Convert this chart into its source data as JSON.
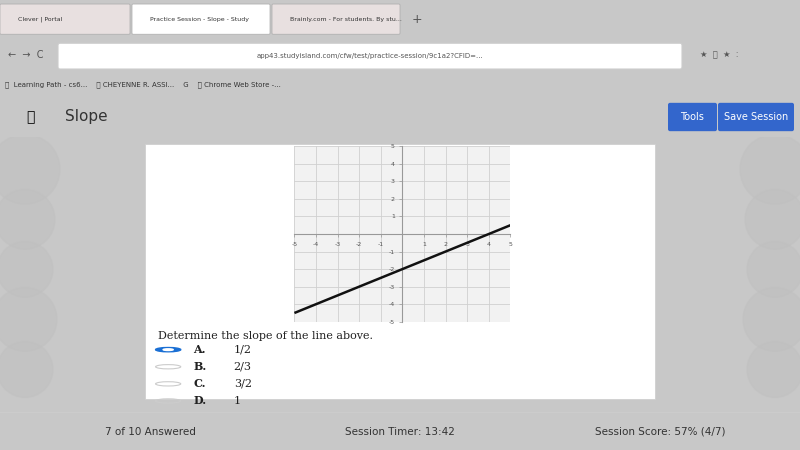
{
  "bg_outer": "#c8c8c8",
  "bg_browser_top": "#e8d0d0",
  "bg_nav": "#d44040",
  "bg_white_panel": "#ffffff",
  "bg_content": "#e0e0e0",
  "graph_bg": "#f2f2f2",
  "title": "Slope",
  "question": "Determine the slope of the line above.",
  "options": [
    {
      "label": "A.",
      "value": "1/2",
      "selected": true
    },
    {
      "label": "B.",
      "value": "2/3",
      "selected": false
    },
    {
      "label": "C.",
      "value": "3/2",
      "selected": false
    },
    {
      "label": "D.",
      "value": "1",
      "selected": false
    }
  ],
  "xlim": [
    -5,
    5
  ],
  "ylim": [
    -5,
    5
  ],
  "line_x": [
    -5,
    5
  ],
  "line_y": [
    -4.5,
    0.5
  ],
  "line_color": "#111111",
  "line_width": 1.8,
  "grid_color": "#d0d0d0",
  "axis_color": "#999999",
  "tick_color": "#555555",
  "selected_color": "#1a6fd4",
  "unselected_color": "#aaaaaa",
  "header_bg": "#f5f5f5",
  "header_text_color": "#333333",
  "btn_tools_color": "#3366cc",
  "btn_save_color": "#3366cc",
  "nav_bar_color": "#cc3333",
  "url_bar_color": "#f8f8f8",
  "tab_active_color": "#ffffff",
  "tab_inactive_color": "#e0e0e0",
  "status_bar_color": "#f5f5f5",
  "status_text": "7 of 10 Answered",
  "timer_text": "Session Timer: 13:42",
  "score_text": "Session Score: 57% (4/7)"
}
